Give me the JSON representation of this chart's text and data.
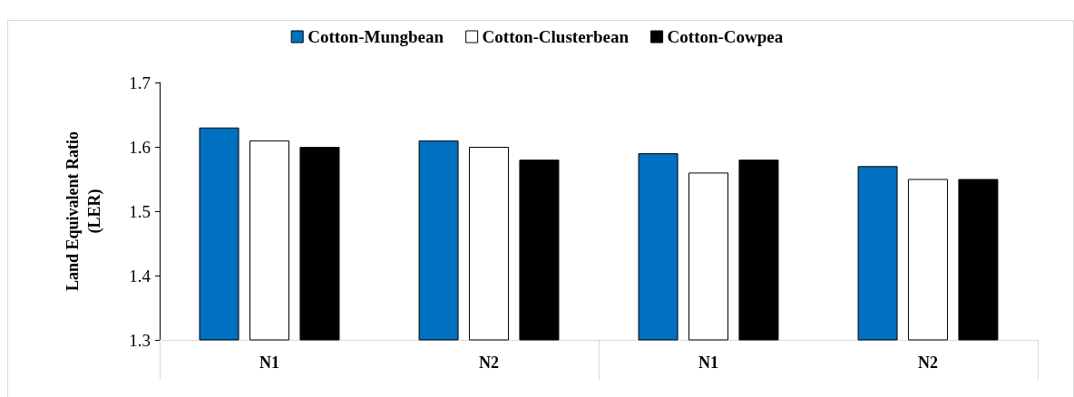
{
  "chart_data": {
    "type": "bar",
    "ylabel": "Land Equivalent Ratio\n(LER)",
    "categories": [
      "N1",
      "N2",
      "N1",
      "N2"
    ],
    "series": [
      {
        "name": "Cotton-Mungbean",
        "color": "#0070c0",
        "values": [
          1.63,
          1.61,
          1.59,
          1.57
        ]
      },
      {
        "name": "Cotton-Clusterbean",
        "color": "#ffffff",
        "values": [
          1.61,
          1.6,
          1.56,
          1.55
        ]
      },
      {
        "name": "Cotton-Cowpea",
        "color": "#000000",
        "values": [
          1.6,
          1.58,
          1.58,
          1.55
        ]
      }
    ],
    "ylim": [
      1.3,
      1.7
    ],
    "yticks": [
      1.3,
      1.4,
      1.5,
      1.6,
      1.7
    ],
    "grid": false,
    "legend": "top"
  }
}
